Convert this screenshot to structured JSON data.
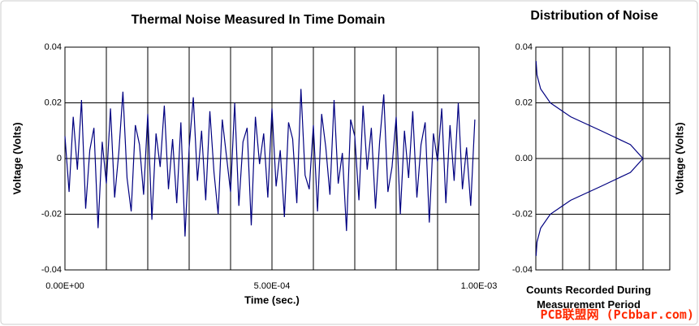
{
  "chart_data": [
    {
      "type": "line",
      "title": "Thermal Noise Measured In Time Domain",
      "x_label": "Time (sec.)",
      "y_label": "Voltage (Volts)",
      "xlim": [
        0,
        0.001
      ],
      "xticks": [
        {
          "value": 0,
          "label": "0.00E+00"
        },
        {
          "value": 0.0005,
          "label": "5.00E-04"
        },
        {
          "value": 0.001,
          "label": "1.00E-03"
        }
      ],
      "x_gridlines": [
        0,
        0.0001,
        0.0002,
        0.0003,
        0.0004,
        0.0005,
        0.0006,
        0.0007,
        0.0008,
        0.0009,
        0.001
      ],
      "ylim": [
        -0.04,
        0.04
      ],
      "yticks": [
        -0.04,
        -0.02,
        0,
        0.02,
        0.04
      ],
      "grid": true,
      "x": [
        0,
        1e-05,
        2e-05,
        3e-05,
        4e-05,
        5e-05,
        6e-05,
        7e-05,
        8e-05,
        9e-05,
        0.0001,
        0.00011,
        0.00012,
        0.00013,
        0.00014,
        0.00015,
        0.00016,
        0.00017,
        0.00018,
        0.00019,
        0.0002,
        0.00021,
        0.00022,
        0.00023,
        0.00024,
        0.00025,
        0.00026,
        0.00027,
        0.00028,
        0.00029,
        0.0003,
        0.00031,
        0.00032,
        0.00033,
        0.00034,
        0.00035,
        0.00036,
        0.00037,
        0.00038,
        0.00039,
        0.0004,
        0.00041,
        0.00042,
        0.00043,
        0.00044,
        0.00045,
        0.00046,
        0.00047,
        0.00048,
        0.00049,
        0.0005,
        0.00051,
        0.00052,
        0.00053,
        0.00054,
        0.00055,
        0.00056,
        0.00057,
        0.00058,
        0.00059,
        0.0006,
        0.00061,
        0.00062,
        0.00063,
        0.00064,
        0.00065,
        0.00066,
        0.00067,
        0.00068,
        0.00069,
        0.0007,
        0.00071,
        0.00072,
        0.00073,
        0.00074,
        0.00075,
        0.00076,
        0.00077,
        0.00078,
        0.00079,
        0.0008,
        0.00081,
        0.00082,
        0.00083,
        0.00084,
        0.00085,
        0.00086,
        0.00087,
        0.00088,
        0.00089,
        0.0009,
        0.00091,
        0.00092,
        0.00093,
        0.00094,
        0.00095,
        0.00096,
        0.00097,
        0.00098,
        0.00099
      ],
      "series": [
        {
          "color": "#000080",
          "values": [
            0.008,
            -0.012,
            0.015,
            -0.004,
            0.021,
            -0.018,
            0.003,
            0.011,
            -0.025,
            0.006,
            -0.009,
            0.018,
            -0.014,
            0.002,
            0.024,
            -0.007,
            -0.019,
            0.012,
            0.005,
            -0.013,
            0.016,
            -0.022,
            0.009,
            -0.003,
            0.019,
            -0.011,
            0.007,
            -0.016,
            0.013,
            -0.028,
            0.004,
            0.022,
            -0.008,
            0.01,
            -0.015,
            0.017,
            -0.005,
            -0.02,
            0.014,
            0.001,
            -0.012,
            0.02,
            -0.017,
            0.006,
            0.011,
            -0.024,
            0.015,
            -0.002,
            0.009,
            -0.014,
            0.018,
            -0.01,
            0.003,
            -0.021,
            0.013,
            0.007,
            -0.016,
            0.025,
            -0.006,
            -0.011,
            0.012,
            -0.019,
            0.016,
            0.004,
            -0.013,
            0.021,
            -0.009,
            0.002,
            -0.026,
            0.014,
            0.008,
            -0.015,
            0.019,
            -0.004,
            0.011,
            -0.018,
            0.006,
            0.023,
            -0.012,
            -0.003,
            0.015,
            -0.02,
            0.01,
            -0.007,
            0.017,
            -0.014,
            0.005,
            0.013,
            -0.023,
            0.009,
            -0.001,
            0.018,
            -0.016,
            0.012,
            -0.008,
            0.02,
            -0.011,
            0.004,
            -0.017,
            0.014
          ]
        }
      ]
    },
    {
      "type": "line",
      "title": "Distribution of Noise",
      "x_label": "Counts Recorded During Measurement Period",
      "y_label": "Voltage (Volts)",
      "xlim": [
        0,
        5
      ],
      "x_gridlines": [
        0,
        1,
        2,
        3,
        4,
        5
      ],
      "ylim": [
        -0.04,
        0.04
      ],
      "yticks": [
        -0.04,
        -0.02,
        {
          "value": 0,
          "label": "0.00"
        },
        0.02,
        0.04
      ],
      "grid": true,
      "x": [
        0.009,
        0.044,
        0.18,
        0.54,
        1.3,
        2.43,
        3.53,
        4,
        3.53,
        2.43,
        1.3,
        0.54,
        0.18,
        0.044,
        0.009
      ],
      "series": [
        {
          "color": "#000080",
          "values": [
            -0.035,
            -0.03,
            -0.025,
            -0.02,
            -0.015,
            -0.01,
            -0.005,
            0,
            0.005,
            0.01,
            0.015,
            0.02,
            0.025,
            0.03,
            0.035
          ]
        }
      ]
    }
  ],
  "watermark": "PCB联盟网 (Pcbbar.com)"
}
